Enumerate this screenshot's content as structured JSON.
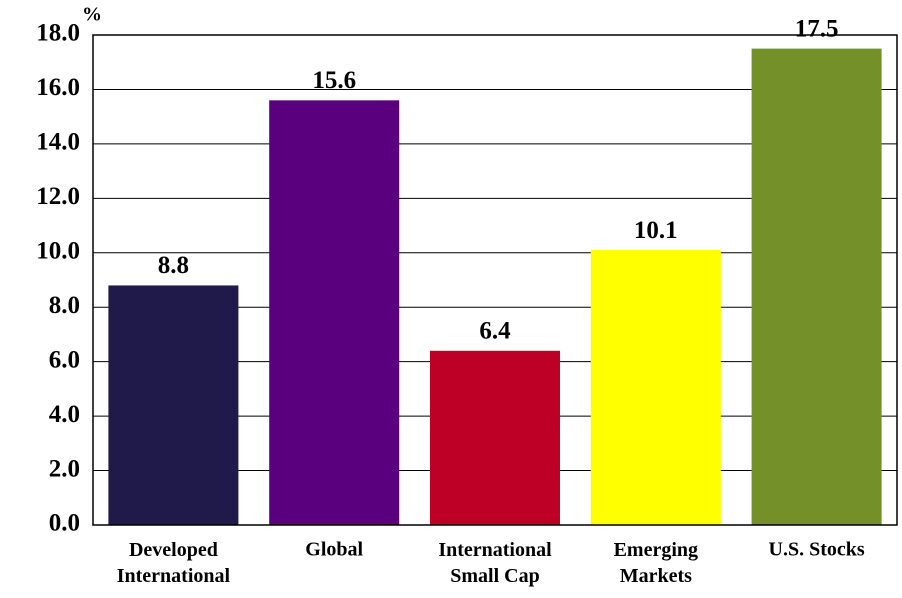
{
  "chart_data": {
    "type": "bar",
    "y_label": "%",
    "categories": [
      "Developed\nInternational",
      "Global",
      "International\nSmall Cap",
      "Emerging\nMarkets",
      "U.S. Stocks"
    ],
    "values": [
      8.8,
      15.6,
      6.4,
      10.1,
      17.5
    ],
    "colors": [
      "#201a4a",
      "#5a007f",
      "#bf0026",
      "#ffff00",
      "#739128"
    ],
    "ylim": [
      0,
      18
    ],
    "yticks": [
      {
        "value": 0,
        "label": "0.0"
      },
      {
        "value": 2,
        "label": "2.0"
      },
      {
        "value": 4,
        "label": "4.0"
      },
      {
        "value": 6,
        "label": "6.0"
      },
      {
        "value": 8,
        "label": "8.0"
      },
      {
        "value": 10,
        "label": "10.0"
      },
      {
        "value": 12,
        "label": "12.0"
      },
      {
        "value": 14,
        "label": "14.0"
      },
      {
        "value": 16,
        "label": "16.0"
      },
      {
        "value": 18,
        "label": "18.0"
      }
    ],
    "grid": true
  }
}
